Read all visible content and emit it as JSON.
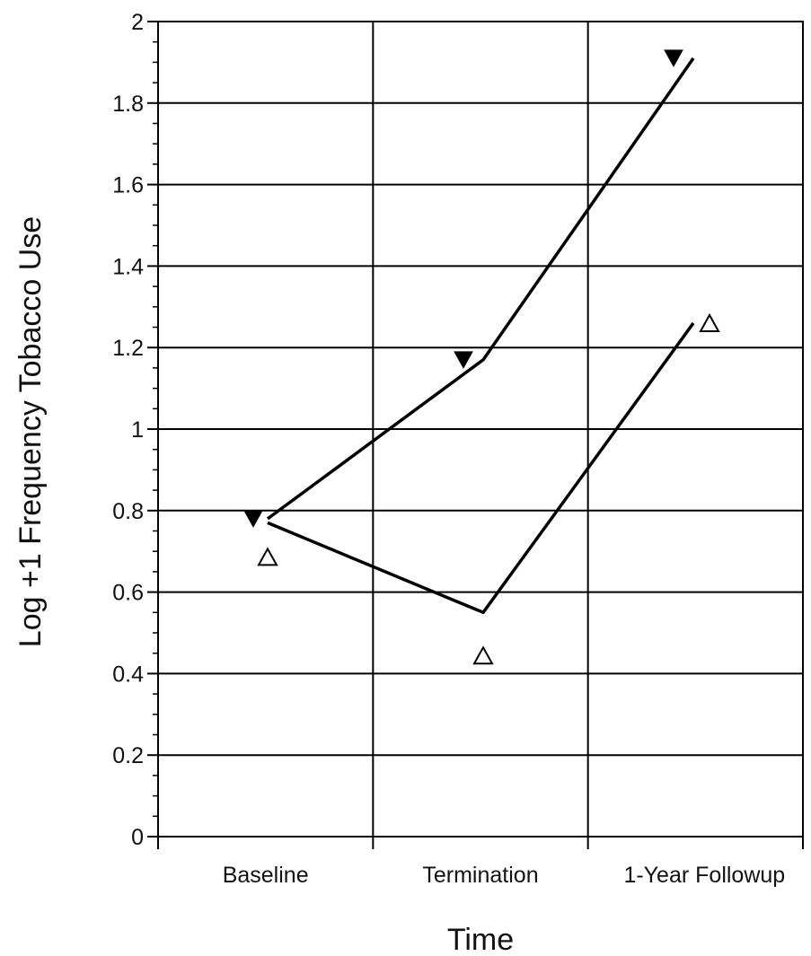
{
  "chart_data": {
    "type": "line",
    "xlabel": "Time",
    "ylabel": "Log +1 Frequency Tobacco Use",
    "categories": [
      "Baseline",
      "Termination",
      "1-Year Followup"
    ],
    "ylim": [
      0,
      2
    ],
    "yticks": [
      "0",
      "0.2",
      "0.4",
      "0.6",
      "0.8",
      "1",
      "1.2",
      "1.4",
      "1.6",
      "1.8",
      "2"
    ],
    "grid": true,
    "series": [
      {
        "marker": "filled-down-triangle",
        "color": "#000000",
        "values": [
          0.78,
          1.17,
          1.91
        ]
      },
      {
        "marker": "open-up-triangle",
        "color": "#000000",
        "values": [
          0.77,
          0.55,
          1.26
        ]
      }
    ]
  }
}
